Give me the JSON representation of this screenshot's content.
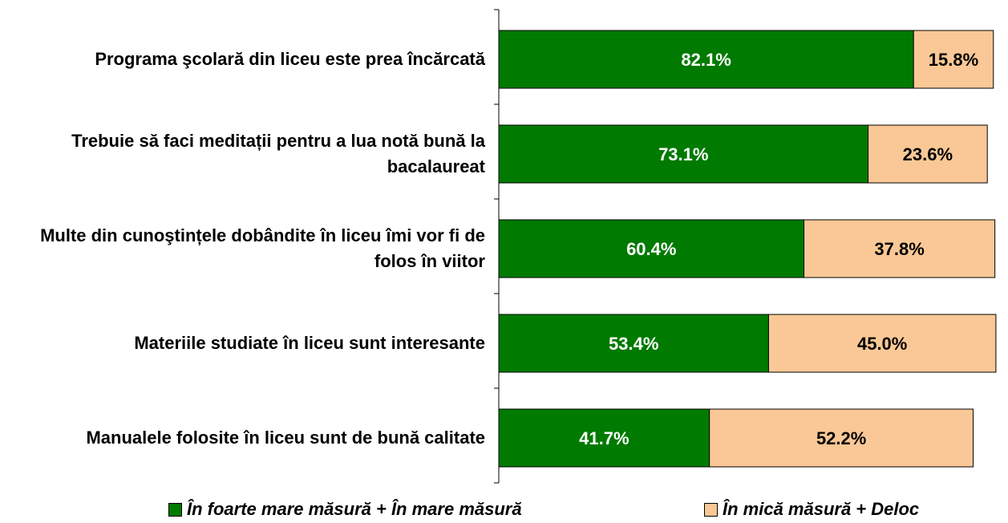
{
  "chart_data": {
    "type": "stacked-bar-horizontal",
    "categories": [
      "Programa şcolară din liceu este prea încărcată",
      "Trebuie să faci meditații pentru a lua notă bună la bacalaureat",
      "Multe din cunoştințele dobândite în liceu îmi vor fi de folos în viitor",
      "Materiile studiate în liceu sunt interesante",
      "Manualele folosite în liceu sunt de bună calitate"
    ],
    "series": [
      {
        "name": "În foarte mare măsură + În mare măsură",
        "color": "#007a00",
        "values": [
          82.1,
          73.1,
          60.4,
          53.4,
          41.7
        ],
        "value_labels": [
          "82.1%",
          "73.1%",
          "60.4%",
          "53.4%",
          "41.7%"
        ]
      },
      {
        "name": "În mică măsură + Deloc",
        "color": "#fac896",
        "values": [
          15.8,
          23.6,
          37.8,
          45.0,
          52.2
        ],
        "value_labels": [
          "15.8%",
          "23.6%",
          "37.8%",
          "45.0%",
          "52.2%"
        ]
      }
    ],
    "xlim": [
      0,
      100
    ]
  }
}
